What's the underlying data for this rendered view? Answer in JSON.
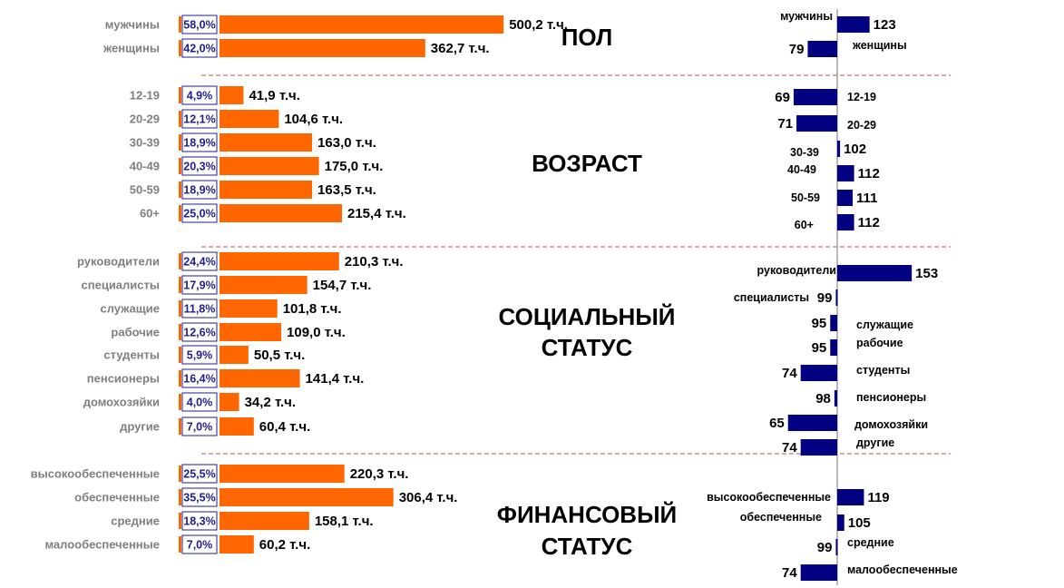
{
  "chart_data": {
    "type": "bar",
    "orientation": "horizontal",
    "accent_colors": {
      "left_bars": "#ff6600",
      "right_bars": "#000080",
      "pct_box": "#1f1f8f",
      "separator": "#c0504d"
    },
    "sections": [
      {
        "title": [
          "ПОЛ"
        ],
        "rows": [
          {
            "label": "мужчины",
            "pct": 58.0,
            "pct_text": "58,0%",
            "abs_text": "500,2 т.ч.",
            "index": 123,
            "index_text": "123"
          },
          {
            "label": "женщины",
            "pct": 42.0,
            "pct_text": "42,0%",
            "abs_text": "362,7 т.ч.",
            "index": 79,
            "index_text": "79"
          }
        ]
      },
      {
        "title": [
          "ВОЗРАСТ"
        ],
        "rows": [
          {
            "label": "12-19",
            "pct": 4.9,
            "pct_text": "4,9%",
            "abs_text": "41,9 т.ч.",
            "index": 69,
            "index_text": "69"
          },
          {
            "label": "20-29",
            "pct": 12.1,
            "pct_text": "12,1%",
            "abs_text": "104,6 т.ч.",
            "index": 71,
            "index_text": "71"
          },
          {
            "label": "30-39",
            "pct": 18.9,
            "pct_text": "18,9%",
            "abs_text": "163,0 т.ч.",
            "index": 102,
            "index_text": "102"
          },
          {
            "label": "40-49",
            "pct": 20.3,
            "pct_text": "20,3%",
            "abs_text": "175,0 т.ч.",
            "index": 112,
            "index_text": "112"
          },
          {
            "label": "50-59",
            "pct": 18.9,
            "pct_text": "18,9%",
            "abs_text": "163,5 т.ч.",
            "index": 111,
            "index_text": "111"
          },
          {
            "label": "60+",
            "pct": 25.0,
            "pct_text": "25,0%",
            "abs_text": "215,4 т.ч.",
            "index": 112,
            "index_text": "112"
          }
        ]
      },
      {
        "title": [
          "СОЦИАЛЬНЫЙ",
          "СТАТУС"
        ],
        "rows": [
          {
            "label": "руководители",
            "pct": 24.4,
            "pct_text": "24,4%",
            "abs_text": "210,3 т.ч.",
            "index": 153,
            "index_text": "153"
          },
          {
            "label": "специалисты",
            "pct": 17.9,
            "pct_text": "17,9%",
            "abs_text": "154,7 т.ч.",
            "index": 99,
            "index_text": "99"
          },
          {
            "label": "служащие",
            "pct": 11.8,
            "pct_text": "11,8%",
            "abs_text": "101,8 т.ч.",
            "index": 95,
            "index_text": "95"
          },
          {
            "label": "рабочие",
            "pct": 12.6,
            "pct_text": "12,6%",
            "abs_text": "109,0 т.ч.",
            "index": 95,
            "index_text": "95"
          },
          {
            "label": "студенты",
            "pct": 5.9,
            "pct_text": "5,9%",
            "abs_text": "50,5 т.ч.",
            "index": 74,
            "index_text": "74"
          },
          {
            "label": "пенсионеры",
            "pct": 16.4,
            "pct_text": "16,4%",
            "abs_text": "141,4 т.ч.",
            "index": 98,
            "index_text": "98"
          },
          {
            "label": "домохозяйки",
            "pct": 4.0,
            "pct_text": "4,0%",
            "abs_text": "34,2 т.ч.",
            "index": 65,
            "index_text": "65"
          },
          {
            "label": "другие",
            "pct": 7.0,
            "pct_text": "7,0%",
            "abs_text": "60,4 т.ч.",
            "index": 74,
            "index_text": "74"
          }
        ]
      },
      {
        "title": [
          "ФИНАНСОВЫЙ",
          "СТАТУС"
        ],
        "rows": [
          {
            "label": "высокообеспеченные",
            "pct": 25.5,
            "pct_text": "25,5%",
            "abs_text": "220,3 т.ч.",
            "index": 119,
            "index_text": "119"
          },
          {
            "label": "обеспеченные",
            "pct": 35.5,
            "pct_text": "35,5%",
            "abs_text": "306,4 т.ч.",
            "index": 105,
            "index_text": "105"
          },
          {
            "label": "средние",
            "pct": 18.3,
            "pct_text": "18,3%",
            "abs_text": "158,1 т.ч.",
            "index": 99,
            "index_text": "99"
          },
          {
            "label": "малообеспеченные",
            "pct": 7.0,
            "pct_text": "7,0%",
            "abs_text": "60,2 т.ч.",
            "index": 74,
            "index_text": "74"
          }
        ]
      }
    ]
  }
}
